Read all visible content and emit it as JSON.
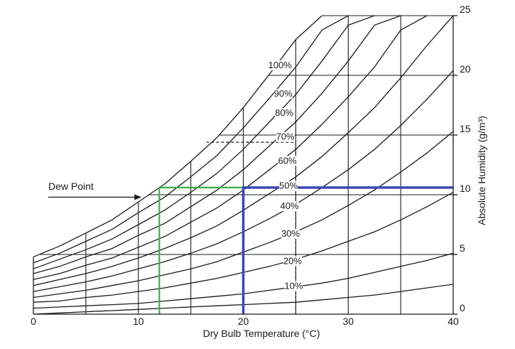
{
  "chart_data": {
    "type": "line",
    "title": "",
    "xlabel": "Dry Bulb Temperature (°C)",
    "ylabel": "Absolute Humidity (g/m³)",
    "xlim": [
      0,
      40
    ],
    "ylim": [
      0,
      25
    ],
    "x_ticks": [
      "0",
      "10",
      "20",
      "30",
      "40"
    ],
    "y_ticks": [
      "0",
      "5",
      "10",
      "15",
      "20",
      "25"
    ],
    "grid_x": [
      5,
      10,
      15,
      20,
      25,
      30,
      35
    ],
    "grid_y": [
      5,
      10,
      15,
      20,
      25
    ],
    "grid": true,
    "x": [
      0,
      2.5,
      5,
      7.5,
      10,
      12.5,
      15,
      17.5,
      20,
      22.5,
      25,
      27.5,
      30,
      32.5,
      35,
      37.5,
      40
    ],
    "series": [
      {
        "name": "100%",
        "values": [
          4.8,
          5.7,
          6.8,
          7.9,
          9.4,
          10.9,
          12.8,
          14.8,
          17.3,
          20.1,
          23.0,
          25.0,
          null,
          null,
          null,
          null,
          null
        ]
      },
      {
        "name": "90%",
        "values": [
          4.3,
          5.1,
          6.1,
          7.1,
          8.5,
          9.8,
          11.5,
          13.3,
          15.6,
          18.1,
          20.7,
          23.8,
          25.0,
          null,
          null,
          null,
          null
        ]
      },
      {
        "name": "80%",
        "values": [
          3.8,
          4.6,
          5.4,
          6.3,
          7.5,
          8.7,
          10.2,
          11.8,
          13.8,
          16.1,
          18.4,
          21.2,
          24.2,
          25.0,
          null,
          null,
          null
        ]
      },
      {
        "name": "70%",
        "values": [
          3.4,
          4.0,
          4.8,
          5.5,
          6.6,
          7.6,
          9.0,
          10.4,
          12.1,
          14.1,
          16.1,
          18.5,
          21.2,
          24.2,
          25.0,
          null,
          null
        ]
      },
      {
        "name": "60%",
        "values": [
          2.9,
          3.4,
          4.1,
          4.7,
          5.6,
          6.5,
          7.7,
          8.9,
          10.4,
          12.1,
          13.8,
          15.9,
          18.2,
          20.7,
          23.8,
          25.0,
          null
        ]
      },
      {
        "name": "50%",
        "values": [
          2.4,
          2.9,
          3.4,
          4.0,
          4.7,
          5.5,
          6.4,
          7.4,
          8.7,
          10.1,
          11.5,
          13.2,
          15.2,
          17.3,
          19.8,
          22.5,
          25.0
        ]
      },
      {
        "name": "40%",
        "values": [
          1.9,
          2.3,
          2.7,
          3.2,
          3.8,
          4.4,
          5.1,
          5.9,
          6.9,
          8.0,
          9.2,
          10.6,
          12.1,
          13.8,
          15.8,
          18.0,
          20.4
        ]
      },
      {
        "name": "30%",
        "values": [
          1.4,
          1.7,
          2.0,
          2.4,
          2.8,
          3.3,
          3.8,
          4.4,
          5.2,
          6.0,
          6.9,
          7.9,
          9.1,
          10.4,
          11.9,
          13.5,
          15.3
        ]
      },
      {
        "name": "20%",
        "values": [
          1.0,
          1.1,
          1.4,
          1.6,
          1.9,
          2.2,
          2.6,
          3.0,
          3.5,
          4.0,
          4.6,
          5.3,
          6.1,
          6.9,
          7.9,
          9.0,
          10.2
        ]
      },
      {
        "name": "10%",
        "values": [
          0.5,
          0.6,
          0.7,
          0.8,
          0.9,
          1.1,
          1.3,
          1.5,
          1.7,
          2.0,
          2.3,
          2.6,
          3.0,
          3.5,
          4.0,
          4.5,
          5.1
        ]
      },
      {
        "name": "",
        "values": [
          0.0,
          0.1,
          0.2,
          0.3,
          0.4,
          0.5,
          0.6,
          0.7,
          0.8,
          0.9,
          1.0,
          1.2,
          1.4,
          1.6,
          1.9,
          2.2,
          2.5
        ]
      }
    ],
    "curve_labels": [
      {
        "text": "100%",
        "x": 23.5,
        "y": 20.6
      },
      {
        "text": "90%",
        "x": 23.8,
        "y": 18.2
      },
      {
        "text": "80%",
        "x": 23.9,
        "y": 16.6
      },
      {
        "text": "70%",
        "x": 24.0,
        "y": 14.6
      },
      {
        "text": "60%",
        "x": 24.2,
        "y": 12.6
      },
      {
        "text": "50%",
        "x": 24.3,
        "y": 10.5
      },
      {
        "text": "40%",
        "x": 24.4,
        "y": 8.8
      },
      {
        "text": "30%",
        "x": 24.5,
        "y": 6.5
      },
      {
        "text": "20%",
        "x": 24.7,
        "y": 4.2
      },
      {
        "text": "10%",
        "x": 24.8,
        "y": 2.1
      }
    ],
    "annotations": {
      "dew_point": {
        "text": "Dew Point",
        "arrow_to": {
          "x": 10.3,
          "y": 9.8
        }
      },
      "green_path": {
        "color": "#3cae4a",
        "points": [
          [
            12,
            0
          ],
          [
            12,
            10.6
          ],
          [
            20,
            10.6
          ]
        ]
      },
      "blue_path": {
        "color": "#3b45b5",
        "points": [
          [
            20,
            0
          ],
          [
            20,
            10.6
          ],
          [
            40,
            10.6
          ]
        ]
      },
      "dashed_path": {
        "color": "#1a1a1a",
        "points": [
          [
            25,
            0
          ],
          [
            25,
            14.4
          ],
          [
            16.5,
            14.4
          ]
        ]
      }
    }
  }
}
